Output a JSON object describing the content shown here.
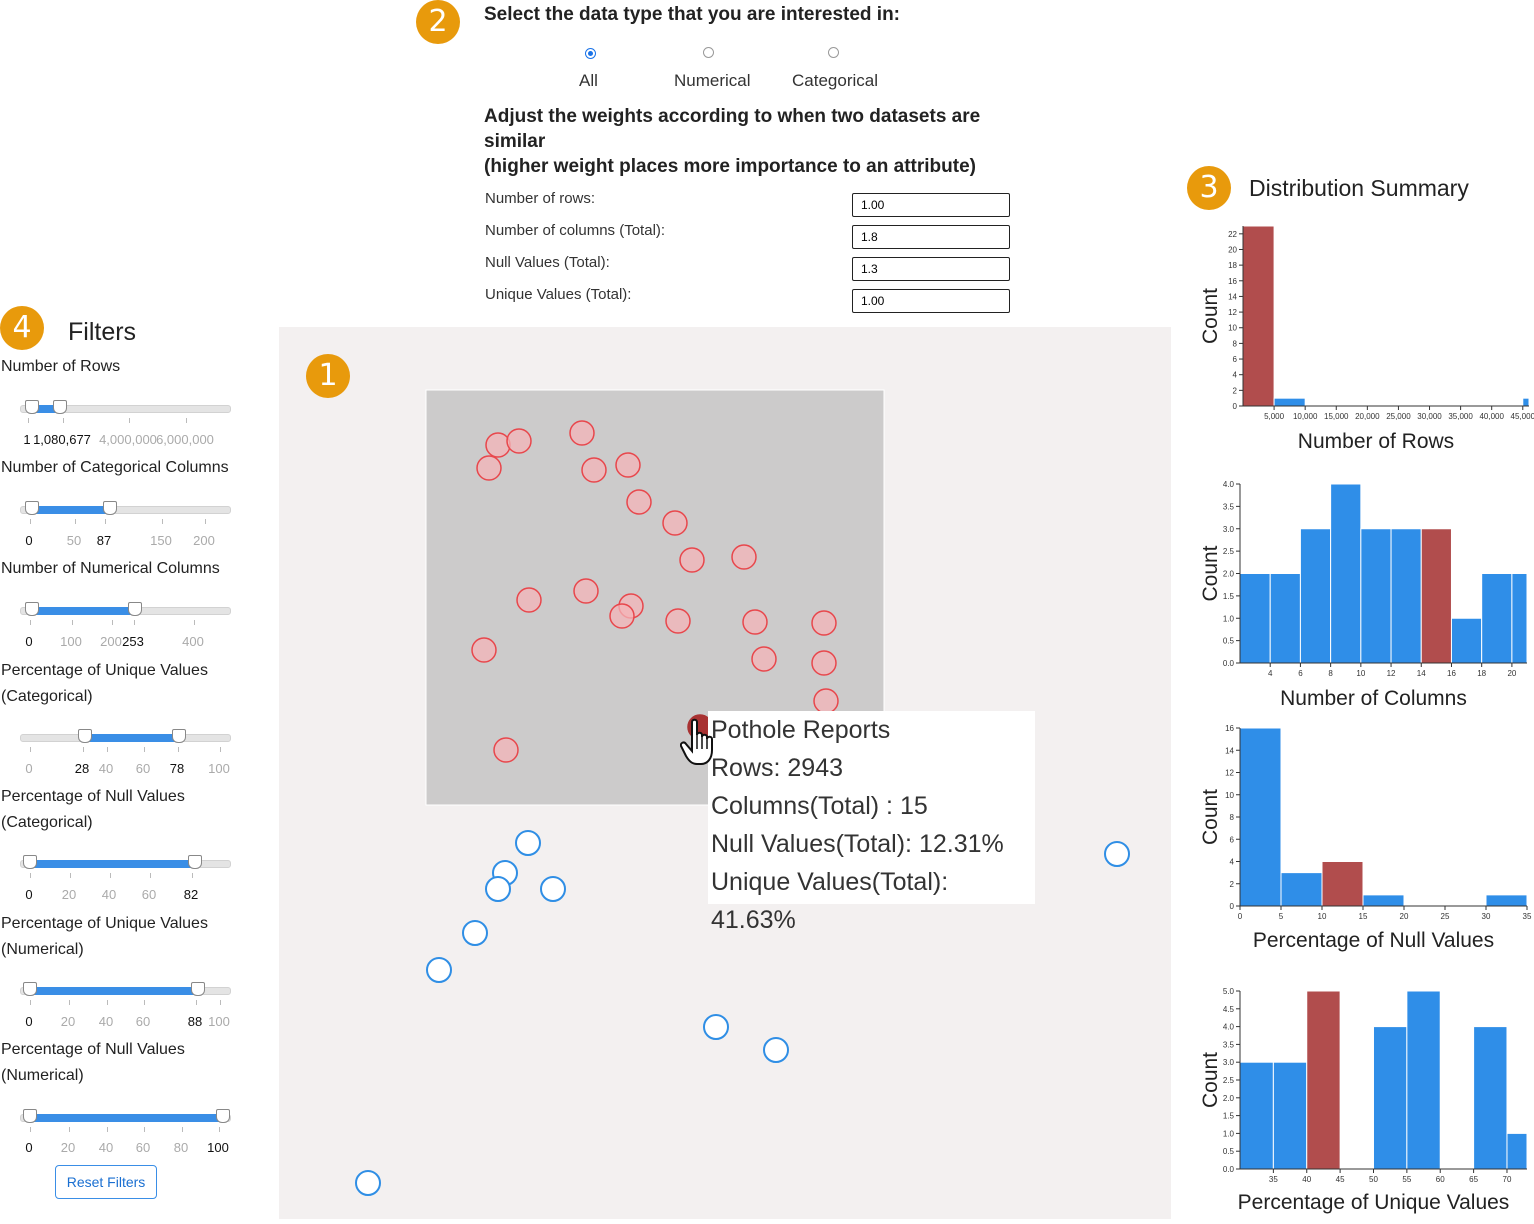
{
  "badges": {
    "one": "1",
    "two": "2",
    "three": "3",
    "four": "4"
  },
  "datatype": {
    "title": "Select the data type that you are interested in:",
    "options": [
      {
        "label": "All",
        "selected": true
      },
      {
        "label": "Numerical",
        "selected": false
      },
      {
        "label": "Categorical",
        "selected": false
      }
    ]
  },
  "weights": {
    "title_line1": "Adjust the weights according to when two datasets are similar",
    "title_line2": "(higher weight places more importance to an attribute)",
    "fields": [
      {
        "label": "Number of rows:",
        "value": "1.00"
      },
      {
        "label": "Number of columns (Total):",
        "value": "1.8"
      },
      {
        "label": "Null Values (Total):",
        "value": "1.3"
      },
      {
        "label": "Unique Values (Total):",
        "value": "1.00"
      }
    ]
  },
  "filters": {
    "title": "Filters",
    "reset_label": "Reset Filters",
    "sliders": [
      {
        "label_lines": [
          "Number of Rows"
        ],
        "ticks": [
          "1",
          "1,080,677",
          "4,000,000",
          "6,000,000"
        ],
        "selected_ticks": [
          0,
          1
        ],
        "range": [
          1,
          1080677
        ],
        "domain": [
          0,
          6000000
        ]
      },
      {
        "label_lines": [
          "Number of Categorical Columns"
        ],
        "ticks": [
          "0",
          "50",
          "87",
          "150",
          "200"
        ],
        "selected_ticks": [
          0,
          2
        ],
        "range": [
          0,
          87
        ],
        "domain": [
          0,
          220
        ]
      },
      {
        "label_lines": [
          "Number of Numerical Columns"
        ],
        "ticks": [
          "0",
          "100",
          "200",
          "253",
          "400"
        ],
        "selected_ticks": [
          0,
          3
        ],
        "range": [
          0,
          253
        ],
        "domain": [
          0,
          460
        ]
      },
      {
        "label_lines": [
          "Percentage of Unique Values",
          "(Categorical)"
        ],
        "ticks": [
          "0",
          "28",
          "40",
          "60",
          "78",
          "100"
        ],
        "selected_ticks": [
          1,
          4
        ],
        "range": [
          28,
          78
        ],
        "domain": [
          0,
          100
        ]
      },
      {
        "label_lines": [
          "Percentage of Null Values",
          "(Categorical)"
        ],
        "ticks": [
          "0",
          "20",
          "40",
          "60",
          "82"
        ],
        "selected_ticks": [
          0,
          4
        ],
        "range": [
          0,
          82
        ],
        "domain": [
          0,
          100
        ]
      },
      {
        "label_lines": [
          "Percentage of Unique Values",
          "(Numerical)"
        ],
        "ticks": [
          "0",
          "20",
          "40",
          "60",
          "88",
          "100"
        ],
        "selected_ticks": [
          0,
          4
        ],
        "range": [
          0,
          88
        ],
        "domain": [
          0,
          100
        ]
      },
      {
        "label_lines": [
          "Percentage of Null Values",
          "(Numerical)"
        ],
        "ticks": [
          "0",
          "20",
          "40",
          "60",
          "80",
          "100"
        ],
        "selected_ticks": [
          0,
          5
        ],
        "range": [
          0,
          100
        ],
        "domain": [
          0,
          100
        ]
      }
    ]
  },
  "scatter": {
    "colors": {
      "selected_stroke": "#e8474c",
      "selected_fill": "#f4b4b8",
      "other_stroke": "#2f8ee5",
      "highlight": "#a83232",
      "brush": "#cccbcb"
    },
    "tooltip": {
      "name": "Pothole Reports",
      "rows": "Rows: 2943",
      "columns": "Columns(Total) : 15",
      "nulls": "Null Values(Total): 12.31%",
      "unique": "Unique Values(Total): 41.63%"
    }
  },
  "distribution": {
    "title": "Distribution Summary",
    "colors": {
      "bar": "#2f8ee8",
      "highlight": "#b14d4d"
    }
  },
  "chart_data": [
    {
      "type": "bar",
      "title": "",
      "xlabel": "Number of Rows",
      "ylabel": "Count",
      "x_ticks": [
        "5,000",
        "10,000",
        "15,000",
        "20,000",
        "25,000",
        "30,000",
        "35,000",
        "40,000",
        "45,000"
      ],
      "y_ticks": [
        "0",
        "2",
        "4",
        "6",
        "8",
        "10",
        "12",
        "14",
        "16",
        "18",
        "20",
        "22"
      ],
      "bins": [
        {
          "x0": 0,
          "x1": 5000,
          "value": 23,
          "highlight": true
        },
        {
          "x0": 5000,
          "x1": 10000,
          "value": 1,
          "highlight": false
        },
        {
          "x0": 45000,
          "x1": 50000,
          "value": 1,
          "highlight": false
        }
      ],
      "xlim": [
        0,
        46000
      ],
      "ylim": [
        0,
        23
      ]
    },
    {
      "type": "bar",
      "title": "",
      "xlabel": "Number of Columns",
      "ylabel": "Count",
      "x_ticks": [
        "4",
        "6",
        "8",
        "10",
        "12",
        "14",
        "16",
        "18",
        "20"
      ],
      "y_ticks": [
        "0.0",
        "0.5",
        "1.0",
        "1.5",
        "2.0",
        "2.5",
        "3.0",
        "3.5",
        "4.0"
      ],
      "bins": [
        {
          "x0": 2,
          "x1": 4,
          "value": 2,
          "highlight": false
        },
        {
          "x0": 4,
          "x1": 6,
          "value": 2,
          "highlight": false
        },
        {
          "x0": 6,
          "x1": 8,
          "value": 3,
          "highlight": false
        },
        {
          "x0": 8,
          "x1": 10,
          "value": 4,
          "highlight": false
        },
        {
          "x0": 10,
          "x1": 12,
          "value": 3,
          "highlight": false
        },
        {
          "x0": 12,
          "x1": 14,
          "value": 3,
          "highlight": false
        },
        {
          "x0": 14,
          "x1": 16,
          "value": 3,
          "highlight": true
        },
        {
          "x0": 16,
          "x1": 18,
          "value": 1,
          "highlight": false
        },
        {
          "x0": 18,
          "x1": 20,
          "value": 2,
          "highlight": false
        },
        {
          "x0": 20,
          "x1": 21,
          "value": 2,
          "highlight": false
        }
      ],
      "xlim": [
        2,
        21
      ],
      "ylim": [
        0,
        4
      ]
    },
    {
      "type": "bar",
      "title": "",
      "xlabel": "Percentage of Null Values",
      "ylabel": "Count",
      "x_ticks": [
        "0",
        "5",
        "10",
        "15",
        "20",
        "25",
        "30",
        "35"
      ],
      "y_ticks": [
        "0",
        "2",
        "4",
        "6",
        "8",
        "10",
        "12",
        "14",
        "16"
      ],
      "bins": [
        {
          "x0": 0,
          "x1": 5,
          "value": 16,
          "highlight": false
        },
        {
          "x0": 5,
          "x1": 10,
          "value": 3,
          "highlight": false
        },
        {
          "x0": 10,
          "x1": 15,
          "value": 4,
          "highlight": true
        },
        {
          "x0": 15,
          "x1": 20,
          "value": 1,
          "highlight": false
        },
        {
          "x0": 30,
          "x1": 35,
          "value": 1,
          "highlight": false
        }
      ],
      "xlim": [
        0,
        35
      ],
      "ylim": [
        0,
        16
      ]
    },
    {
      "type": "bar",
      "title": "",
      "xlabel": "Percentage of Unique Values",
      "ylabel": "Count",
      "x_ticks": [
        "35",
        "40",
        "45",
        "50",
        "55",
        "60",
        "65",
        "70"
      ],
      "y_ticks": [
        "0.0",
        "0.5",
        "1.0",
        "1.5",
        "2.0",
        "2.5",
        "3.0",
        "3.5",
        "4.0",
        "4.5",
        "5.0"
      ],
      "bins": [
        {
          "x0": 30,
          "x1": 35,
          "value": 3,
          "highlight": false
        },
        {
          "x0": 35,
          "x1": 40,
          "value": 3,
          "highlight": false
        },
        {
          "x0": 40,
          "x1": 45,
          "value": 5,
          "highlight": true
        },
        {
          "x0": 50,
          "x1": 55,
          "value": 4,
          "highlight": false
        },
        {
          "x0": 55,
          "x1": 60,
          "value": 5,
          "highlight": false
        },
        {
          "x0": 65,
          "x1": 70,
          "value": 4,
          "highlight": false
        },
        {
          "x0": 70,
          "x1": 73,
          "value": 1,
          "highlight": false
        }
      ],
      "xlim": [
        30,
        73
      ],
      "ylim": [
        0,
        5
      ]
    }
  ]
}
